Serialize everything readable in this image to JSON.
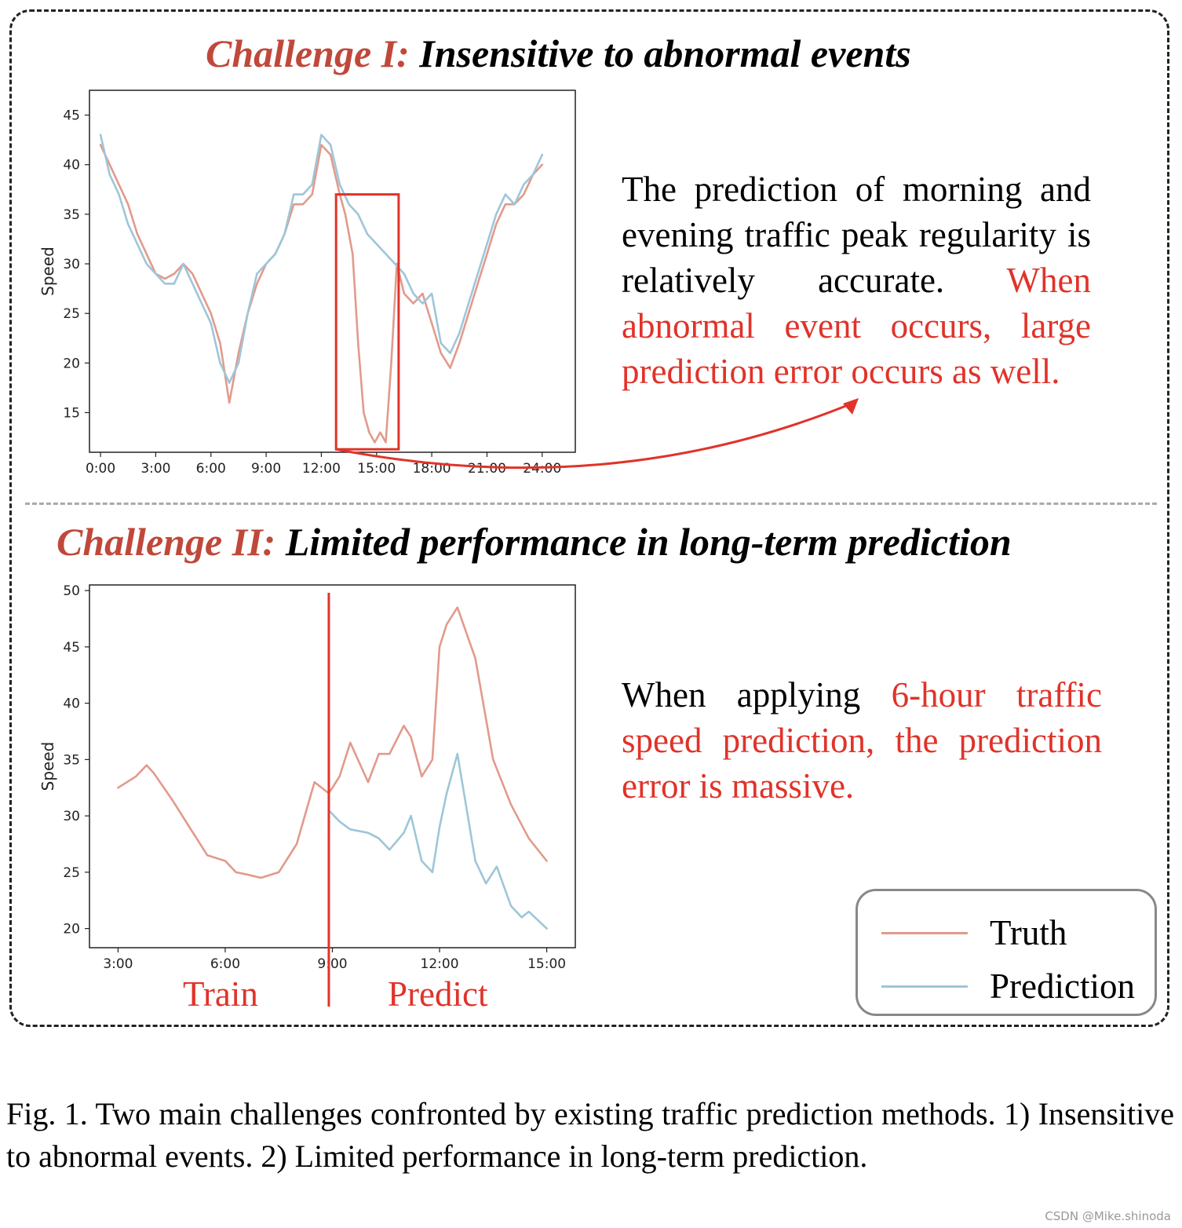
{
  "panel1": {
    "title_lead": "Challenge I:",
    "title_rest": " Insensitive to abnormal events",
    "desc_plain": "The prediction of morning and evening traffic peak regularity is relatively accurate. ",
    "desc_highlight": "When abnormal event occurs, large prediction error occurs as well."
  },
  "panel2": {
    "title_lead": "Challenge II:",
    "title_rest": " Limited performance in long-term prediction",
    "desc_plain": "When applying ",
    "desc_highlight": "6-hour traffic speed prediction, the prediction error is massive.",
    "train_label": "Train",
    "predict_label": "Predict"
  },
  "legend": {
    "items": [
      {
        "label": "Truth",
        "color": "#e29a8c"
      },
      {
        "label": "Prediction",
        "color": "#9ec6d8"
      }
    ]
  },
  "caption": "Fig. 1.  Two main challenges confronted by existing traffic prediction methods. 1) Insensitive to abnormal events. 2) Limited performance in long-term prediction.",
  "watermark": "CSDN @Mike.shinoda",
  "colors": {
    "truth": "#e29a8c",
    "prediction": "#9ec6d8",
    "accent": "#e0332a",
    "title_lead": "#c0483a"
  },
  "chart_data": [
    {
      "type": "line",
      "title": "",
      "xlabel": "",
      "ylabel": "Speed",
      "x_unit": "hours",
      "xlim": [
        -0.6,
        25.8
      ],
      "ylim": [
        11,
        47.5
      ],
      "x_ticks": [
        0,
        3,
        6,
        9,
        12,
        15,
        18,
        21,
        24
      ],
      "x_tick_labels": [
        "0:00",
        "3:00",
        "6:00",
        "9:00",
        "12:00",
        "15:00",
        "18:00",
        "21:00",
        "24:00"
      ],
      "y_ticks": [
        15,
        20,
        25,
        30,
        35,
        40,
        45
      ],
      "highlight_box": {
        "x": [
          12.8,
          16.2
        ],
        "y": [
          11.3,
          37
        ]
      },
      "series": [
        {
          "name": "Truth",
          "color": "#e29a8c",
          "x": [
            0,
            0.5,
            1,
            1.5,
            2,
            2.5,
            3,
            3.5,
            4,
            4.5,
            5,
            5.5,
            6,
            6.5,
            7,
            7.5,
            8,
            8.5,
            9,
            9.5,
            10,
            10.5,
            11,
            11.5,
            12,
            12.5,
            13,
            13.3,
            13.7,
            14,
            14.3,
            14.6,
            14.9,
            15.2,
            15.5,
            15.8,
            16.1,
            16.5,
            17,
            17.5,
            18,
            18.5,
            19,
            19.5,
            20,
            20.5,
            21,
            21.5,
            22,
            22.5,
            23,
            23.5,
            24
          ],
          "values": [
            42,
            40,
            38,
            36,
            33,
            31,
            29,
            28.5,
            29,
            30,
            29,
            27,
            25,
            22,
            16,
            21,
            25,
            28,
            30,
            31,
            33,
            36,
            36,
            37,
            42,
            41,
            37,
            35,
            31,
            22,
            15,
            13,
            12,
            13,
            12,
            20,
            30,
            27,
            26,
            27,
            24,
            21,
            19.5,
            22,
            25,
            28,
            31,
            34,
            36,
            36,
            37,
            39,
            40
          ]
        },
        {
          "name": "Prediction",
          "color": "#9ec6d8",
          "x": [
            0,
            0.5,
            1,
            1.5,
            2,
            2.5,
            3,
            3.5,
            4,
            4.5,
            5,
            5.5,
            6,
            6.5,
            7,
            7.5,
            8,
            8.5,
            9,
            9.5,
            10,
            10.5,
            11,
            11.5,
            12,
            12.5,
            13,
            13.5,
            14,
            14.5,
            15,
            15.5,
            16,
            16.5,
            17,
            17.5,
            18,
            18.5,
            19,
            19.5,
            20,
            20.5,
            21,
            21.5,
            22,
            22.5,
            23,
            23.5,
            24
          ],
          "values": [
            43,
            39,
            37,
            34,
            32,
            30,
            29,
            28,
            28,
            30,
            28,
            26,
            24,
            20,
            18,
            20,
            25,
            29,
            30,
            31,
            33,
            37,
            37,
            38,
            43,
            42,
            38,
            36,
            35,
            33,
            32,
            31,
            30,
            29,
            27,
            26,
            27,
            22,
            21,
            23,
            26,
            29,
            32,
            35,
            37,
            36,
            38,
            39,
            41
          ]
        }
      ]
    },
    {
      "type": "line",
      "title": "",
      "xlabel": "",
      "ylabel": "Speed",
      "x_unit": "hours",
      "xlim": [
        2.2,
        15.8
      ],
      "ylim": [
        18.3,
        50.5
      ],
      "x_ticks": [
        3,
        6,
        9,
        12,
        15
      ],
      "x_tick_labels": [
        "3:00",
        "6:00",
        "9:00",
        "12:00",
        "15:00"
      ],
      "y_ticks": [
        20,
        25,
        30,
        35,
        40,
        45,
        50
      ],
      "split_x": 8.9,
      "series": [
        {
          "name": "Truth",
          "color": "#e29a8c",
          "x": [
            3,
            3.5,
            3.8,
            4,
            4.5,
            5,
            5.5,
            6,
            6.3,
            6.6,
            7,
            7.5,
            8,
            8.5,
            8.9,
            9.2,
            9.5,
            10,
            10.3,
            10.6,
            11,
            11.2,
            11.5,
            11.8,
            12,
            12.2,
            12.5,
            13,
            13.5,
            14,
            14.5,
            15
          ],
          "values": [
            32.5,
            33.5,
            34.5,
            33.8,
            31.5,
            29,
            26.5,
            26,
            25,
            24.8,
            24.5,
            25,
            27.5,
            33,
            32,
            33.5,
            36.5,
            33,
            35.5,
            35.5,
            38,
            37,
            33.5,
            35,
            45,
            47,
            48.5,
            44,
            35,
            31,
            28,
            26
          ]
        },
        {
          "name": "Prediction",
          "color": "#9ec6d8",
          "x": [
            8.9,
            9.2,
            9.5,
            10,
            10.3,
            10.6,
            11,
            11.2,
            11.5,
            11.8,
            12,
            12.2,
            12.5,
            13,
            13.3,
            13.6,
            14,
            14.3,
            14.5,
            15
          ],
          "values": [
            30.5,
            29.5,
            28.8,
            28.5,
            28,
            27,
            28.5,
            30,
            26,
            25,
            29,
            32,
            35.5,
            26,
            24,
            25.5,
            22,
            21,
            21.5,
            20
          ]
        }
      ]
    }
  ]
}
